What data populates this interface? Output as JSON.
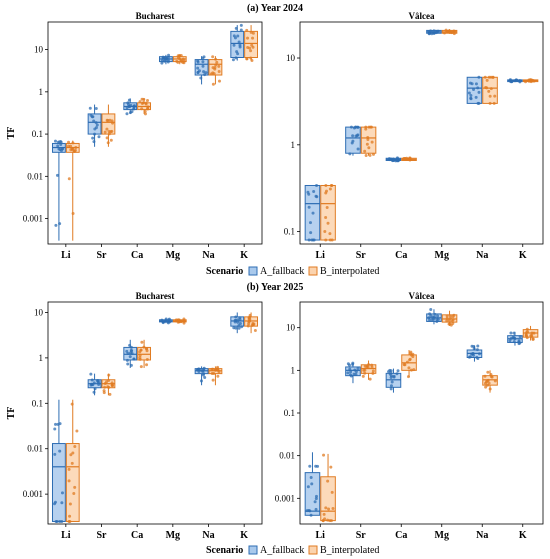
{
  "legend": {
    "title": "Scenario",
    "entries": [
      {
        "name": "A_fallback",
        "color": "#2e6db3",
        "fill": "#a9c9ec"
      },
      {
        "name": "B_interpolated",
        "color": "#e07b22",
        "fill": "#fbd3ae"
      }
    ]
  },
  "chart_data": [
    {
      "type": "box",
      "title": "(a) Year 2024",
      "panel": "Bucharest",
      "ylabel": "TF",
      "scale": "log",
      "ylim": [
        0.00025,
        45
      ],
      "yticks": [
        0.001,
        0.01,
        0.1,
        1,
        10
      ],
      "ytick_labels": [
        "0.001",
        "0.01",
        "0.1",
        "1",
        "10"
      ],
      "categories": [
        "Li",
        "Sr",
        "Ca",
        "Mg",
        "Na",
        "K"
      ],
      "series": [
        {
          "name": "A_fallback",
          "boxes": [
            {
              "min": 0.0003,
              "q1": 0.037,
              "median": 0.048,
              "q3": 0.06,
              "max": 0.07
            },
            {
              "min": 0.05,
              "q1": 0.1,
              "median": 0.19,
              "q3": 0.3,
              "max": 0.5
            },
            {
              "min": 0.3,
              "q1": 0.38,
              "median": 0.45,
              "q3": 0.55,
              "max": 0.7
            },
            {
              "min": 4.5,
              "q1": 5.2,
              "median": 6.0,
              "q3": 6.8,
              "max": 7.5
            },
            {
              "min": 1.5,
              "q1": 2.5,
              "median": 4.5,
              "q3": 5.8,
              "max": 7.0
            },
            {
              "min": 5.5,
              "q1": 6.5,
              "median": 14.0,
              "q3": 27.0,
              "max": 38.0
            }
          ]
        },
        {
          "name": "B_interpolated",
          "boxes": [
            {
              "min": 0.0003,
              "q1": 0.037,
              "median": 0.048,
              "q3": 0.06,
              "max": 0.07
            },
            {
              "min": 0.05,
              "q1": 0.1,
              "median": 0.19,
              "q3": 0.3,
              "max": 0.5
            },
            {
              "min": 0.3,
              "q1": 0.38,
              "median": 0.45,
              "q3": 0.55,
              "max": 0.7
            },
            {
              "min": 4.5,
              "q1": 5.2,
              "median": 6.0,
              "q3": 6.8,
              "max": 7.5
            },
            {
              "min": 1.5,
              "q1": 2.5,
              "median": 4.5,
              "q3": 5.8,
              "max": 7.0
            },
            {
              "min": 5.5,
              "q1": 6.5,
              "median": 14.0,
              "q3": 27.0,
              "max": 38.0
            }
          ]
        }
      ]
    },
    {
      "type": "box",
      "title": "(a) Year 2024",
      "panel": "Vâlcea",
      "ylabel": "",
      "scale": "log",
      "ylim": [
        0.072,
        26
      ],
      "yticks": [
        0.1,
        1,
        10
      ],
      "ytick_labels": [
        "0.1",
        "1",
        "10"
      ],
      "categories": [
        "Li",
        "Sr",
        "Ca",
        "Mg",
        "Na",
        "K"
      ],
      "series": [
        {
          "name": "A_fallback",
          "boxes": [
            {
              "min": 0.08,
              "q1": 0.08,
              "median": 0.21,
              "q3": 0.34,
              "max": 0.34
            },
            {
              "min": 0.75,
              "q1": 0.8,
              "median": 1.2,
              "q3": 1.6,
              "max": 1.6
            },
            {
              "min": 0.65,
              "q1": 0.66,
              "median": 0.68,
              "q3": 0.7,
              "max": 0.71
            },
            {
              "min": 19.0,
              "q1": 19.3,
              "median": 20.0,
              "q3": 20.8,
              "max": 21.5
            },
            {
              "min": 3.0,
              "q1": 3.0,
              "median": 4.5,
              "q3": 6.0,
              "max": 6.0
            },
            {
              "min": 5.3,
              "q1": 5.35,
              "median": 5.5,
              "q3": 5.6,
              "max": 5.65
            }
          ]
        },
        {
          "name": "B_interpolated",
          "boxes": [
            {
              "min": 0.08,
              "q1": 0.08,
              "median": 0.21,
              "q3": 0.34,
              "max": 0.34
            },
            {
              "min": 0.75,
              "q1": 0.8,
              "median": 1.2,
              "q3": 1.6,
              "max": 1.6
            },
            {
              "min": 0.65,
              "q1": 0.66,
              "median": 0.68,
              "q3": 0.7,
              "max": 0.71
            },
            {
              "min": 19.0,
              "q1": 19.3,
              "median": 20.0,
              "q3": 20.8,
              "max": 21.5
            },
            {
              "min": 3.0,
              "q1": 3.0,
              "median": 4.5,
              "q3": 6.0,
              "max": 6.0
            },
            {
              "min": 5.3,
              "q1": 5.35,
              "median": 5.5,
              "q3": 5.6,
              "max": 5.65
            }
          ]
        }
      ]
    },
    {
      "type": "box",
      "title": "(b) Year 2025",
      "panel": "Bucharest",
      "ylabel": "TF",
      "scale": "log",
      "ylim": [
        0.00022,
        17
      ],
      "yticks": [
        0.001,
        0.01,
        0.1,
        1,
        10
      ],
      "ytick_labels": [
        "0.001",
        "0.01",
        "0.1",
        "1",
        "10"
      ],
      "categories": [
        "Li",
        "Sr",
        "Ca",
        "Mg",
        "Na",
        "K"
      ],
      "series": [
        {
          "name": "A_fallback",
          "boxes": [
            {
              "min": 0.00025,
              "q1": 0.00025,
              "median": 0.004,
              "q3": 0.013,
              "max": 0.12
            },
            {
              "min": 0.15,
              "q1": 0.22,
              "median": 0.27,
              "q3": 0.33,
              "max": 0.45
            },
            {
              "min": 0.6,
              "q1": 0.9,
              "median": 1.2,
              "q3": 1.7,
              "max": 2.5
            },
            {
              "min": 5.8,
              "q1": 6.2,
              "median": 6.5,
              "q3": 6.9,
              "max": 7.3
            },
            {
              "min": 0.25,
              "q1": 0.45,
              "median": 0.52,
              "q3": 0.58,
              "max": 0.65
            },
            {
              "min": 3.5,
              "q1": 5.0,
              "median": 6.5,
              "q3": 8.0,
              "max": 10.0
            }
          ]
        },
        {
          "name": "B_interpolated",
          "boxes": [
            {
              "min": 0.00025,
              "q1": 0.00025,
              "median": 0.004,
              "q3": 0.013,
              "max": 0.12
            },
            {
              "min": 0.15,
              "q1": 0.22,
              "median": 0.27,
              "q3": 0.33,
              "max": 0.45
            },
            {
              "min": 0.6,
              "q1": 0.9,
              "median": 1.2,
              "q3": 1.7,
              "max": 2.5
            },
            {
              "min": 5.8,
              "q1": 6.2,
              "median": 6.5,
              "q3": 6.9,
              "max": 7.3
            },
            {
              "min": 0.25,
              "q1": 0.45,
              "median": 0.52,
              "q3": 0.58,
              "max": 0.65
            },
            {
              "min": 3.5,
              "q1": 5.0,
              "median": 6.5,
              "q3": 8.0,
              "max": 10.0
            }
          ]
        }
      ]
    },
    {
      "type": "box",
      "title": "(b) Year 2025",
      "panel": "Vâlcea",
      "ylabel": "",
      "scale": "log",
      "ylim": [
        0.00025,
        40
      ],
      "yticks": [
        0.001,
        0.01,
        0.1,
        1,
        10
      ],
      "ytick_labels": [
        "0.001",
        "0.01",
        "0.1",
        "1",
        "10"
      ],
      "categories": [
        "Li",
        "Sr",
        "Ca",
        "Mg",
        "Na",
        "K"
      ],
      "series": [
        {
          "name": "A_fallback",
          "boxes": [
            {
              "min": 0.0004,
              "q1": 0.0004,
              "median": 0.0005,
              "q3": 0.004,
              "max": 0.012
            },
            {
              "min": 0.5,
              "q1": 0.75,
              "median": 1.0,
              "q3": 1.2,
              "max": 1.5
            },
            {
              "min": 0.3,
              "q1": 0.4,
              "median": 0.6,
              "q3": 0.85,
              "max": 1.1
            },
            {
              "min": 12.0,
              "q1": 14.0,
              "median": 17.0,
              "q3": 21.0,
              "max": 27.0
            },
            {
              "min": 1.6,
              "q1": 2.0,
              "median": 2.5,
              "q3": 3.0,
              "max": 3.8
            },
            {
              "min": 3.8,
              "q1": 4.5,
              "median": 5.5,
              "q3": 6.5,
              "max": 8.0
            }
          ]
        },
        {
          "name": "B_interpolated",
          "boxes": [
            {
              "min": 0.0003,
              "q1": 0.0003,
              "median": 0.0005,
              "q3": 0.0032,
              "max": 0.011
            },
            {
              "min": 0.6,
              "q1": 0.85,
              "median": 1.1,
              "q3": 1.35,
              "max": 1.7
            },
            {
              "min": 0.7,
              "q1": 1.0,
              "median": 1.5,
              "q3": 2.3,
              "max": 3.0
            },
            {
              "min": 11.0,
              "q1": 13.5,
              "median": 16.0,
              "q3": 20.0,
              "max": 25.0
            },
            {
              "min": 0.3,
              "q1": 0.45,
              "median": 0.6,
              "q3": 0.75,
              "max": 1.0
            },
            {
              "min": 5.0,
              "q1": 6.0,
              "median": 7.5,
              "q3": 9.0,
              "max": 11.0
            }
          ]
        }
      ]
    }
  ]
}
